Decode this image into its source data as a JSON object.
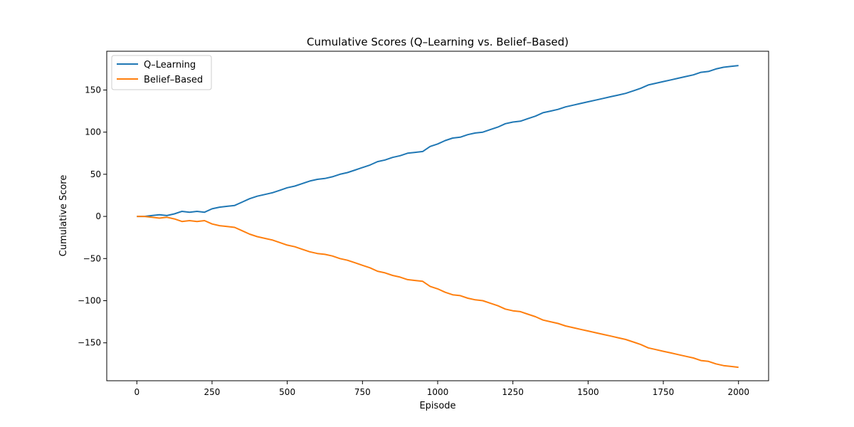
{
  "chart_data": {
    "type": "line",
    "title": "Cumulative Scores (Q–Learning vs. Belief–Based)",
    "xlabel": "Episode",
    "ylabel": "Cumulative Score",
    "xlim": [
      -100,
      2100
    ],
    "ylim": [
      -195,
      196
    ],
    "xticks": [
      0,
      250,
      500,
      750,
      1000,
      1250,
      1500,
      1750,
      2000
    ],
    "xtick_labels": [
      "0",
      "250",
      "500",
      "750",
      "1000",
      "1250",
      "1500",
      "1750",
      "2000"
    ],
    "yticks": [
      -150,
      -100,
      -50,
      0,
      50,
      100,
      150
    ],
    "ytick_labels": [
      "−150",
      "−100",
      "−50",
      "0",
      "50",
      "100",
      "150"
    ],
    "grid": false,
    "legend": "top-left",
    "series": [
      {
        "name": "Q–Learning",
        "color": "#1f77b4",
        "x": [
          0,
          25,
          50,
          75,
          100,
          125,
          150,
          175,
          200,
          225,
          250,
          275,
          300,
          325,
          350,
          375,
          400,
          425,
          450,
          475,
          500,
          525,
          550,
          575,
          600,
          625,
          650,
          675,
          700,
          725,
          750,
          775,
          800,
          825,
          850,
          875,
          900,
          925,
          950,
          975,
          1000,
          1025,
          1050,
          1075,
          1100,
          1125,
          1150,
          1175,
          1200,
          1225,
          1250,
          1275,
          1300,
          1325,
          1350,
          1375,
          1400,
          1425,
          1450,
          1475,
          1500,
          1525,
          1550,
          1575,
          1600,
          1625,
          1650,
          1675,
          1700,
          1725,
          1750,
          1775,
          1800,
          1825,
          1850,
          1875,
          1900,
          1925,
          1950,
          1975,
          2000
        ],
        "y": [
          0,
          0,
          1,
          2,
          1,
          3,
          6,
          5,
          6,
          5,
          9,
          11,
          12,
          13,
          17,
          21,
          24,
          26,
          28,
          31,
          34,
          36,
          39,
          42,
          44,
          45,
          47,
          50,
          52,
          55,
          58,
          61,
          65,
          67,
          70,
          72,
          75,
          76,
          77,
          83,
          86,
          90,
          93,
          94,
          97,
          99,
          100,
          103,
          106,
          110,
          112,
          113,
          116,
          119,
          123,
          125,
          127,
          130,
          132,
          134,
          136,
          138,
          140,
          142,
          144,
          146,
          149,
          152,
          156,
          158,
          160,
          162,
          164,
          166,
          168,
          171,
          172,
          175,
          177,
          178,
          179
        ]
      },
      {
        "name": "Belief–Based",
        "color": "#ff7f0e",
        "x": [
          0,
          25,
          50,
          75,
          100,
          125,
          150,
          175,
          200,
          225,
          250,
          275,
          300,
          325,
          350,
          375,
          400,
          425,
          450,
          475,
          500,
          525,
          550,
          575,
          600,
          625,
          650,
          675,
          700,
          725,
          750,
          775,
          800,
          825,
          850,
          875,
          900,
          925,
          950,
          975,
          1000,
          1025,
          1050,
          1075,
          1100,
          1125,
          1150,
          1175,
          1200,
          1225,
          1250,
          1275,
          1300,
          1325,
          1350,
          1375,
          1400,
          1425,
          1450,
          1475,
          1500,
          1525,
          1550,
          1575,
          1600,
          1625,
          1650,
          1675,
          1700,
          1725,
          1750,
          1775,
          1800,
          1825,
          1850,
          1875,
          1900,
          1925,
          1950,
          1975,
          2000
        ],
        "y": [
          0,
          0,
          -1,
          -2,
          -1,
          -3,
          -6,
          -5,
          -6,
          -5,
          -9,
          -11,
          -12,
          -13,
          -17,
          -21,
          -24,
          -26,
          -28,
          -31,
          -34,
          -36,
          -39,
          -42,
          -44,
          -45,
          -47,
          -50,
          -52,
          -55,
          -58,
          -61,
          -65,
          -67,
          -70,
          -72,
          -75,
          -76,
          -77,
          -83,
          -86,
          -90,
          -93,
          -94,
          -97,
          -99,
          -100,
          -103,
          -106,
          -110,
          -112,
          -113,
          -116,
          -119,
          -123,
          -125,
          -127,
          -130,
          -132,
          -134,
          -136,
          -138,
          -140,
          -142,
          -144,
          -146,
          -149,
          -152,
          -156,
          -158,
          -160,
          -162,
          -164,
          -166,
          -168,
          -171,
          -172,
          -175,
          -177,
          -178,
          -179
        ]
      }
    ]
  }
}
